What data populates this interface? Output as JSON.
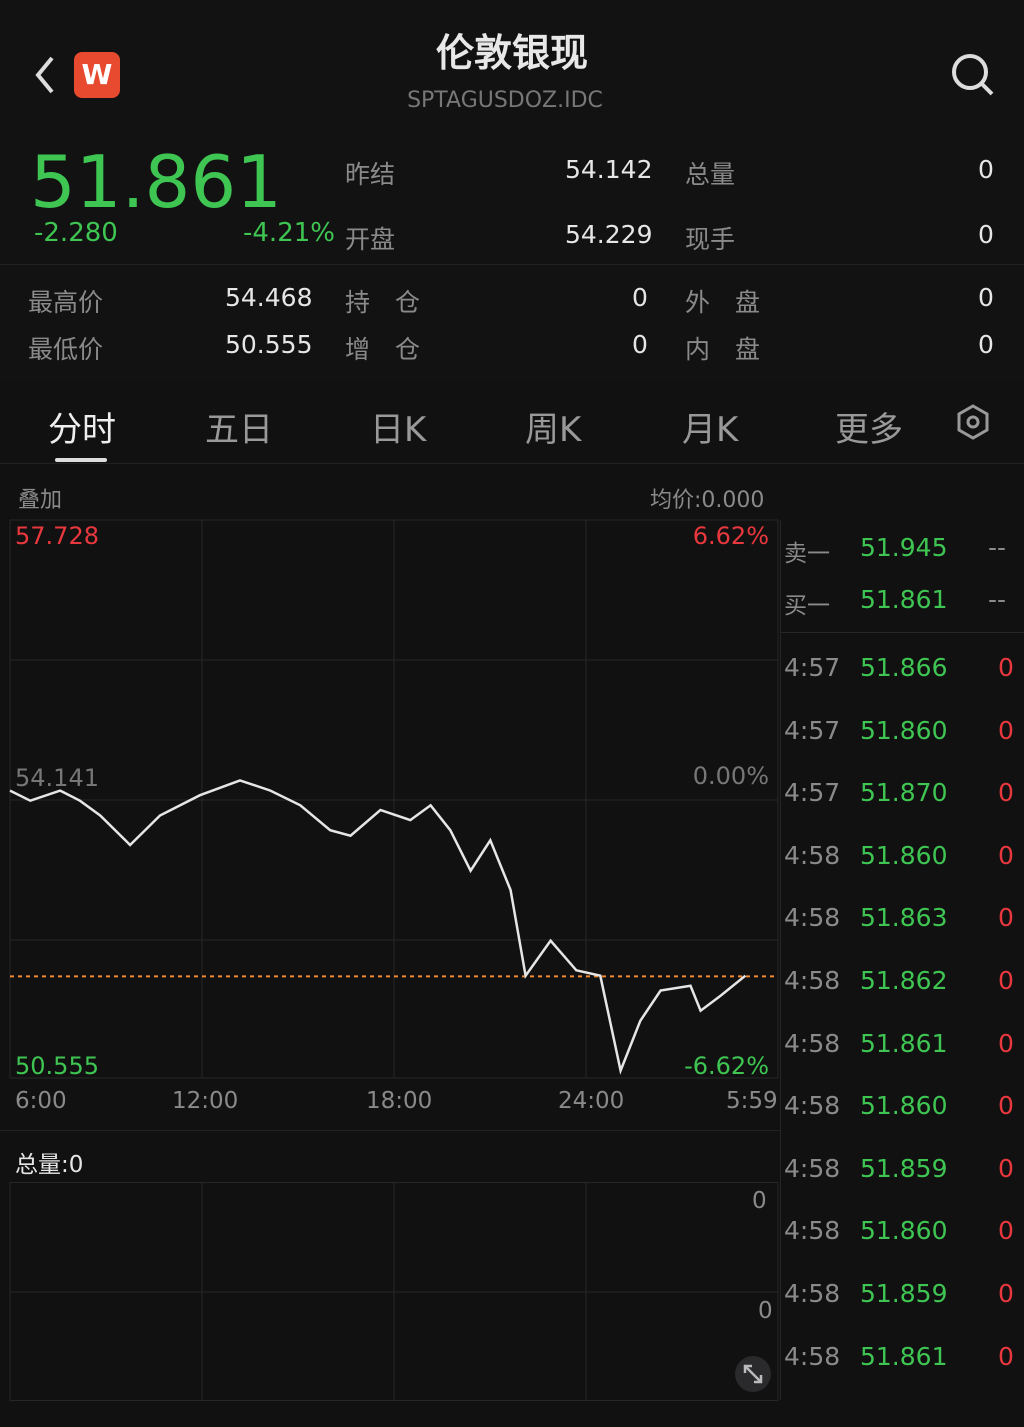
{
  "header": {
    "title": "伦敦银现",
    "code": "SPTAGUSDOZ.IDC",
    "logo": "W",
    "back_icon": "chevron-left-icon",
    "search_icon": "search-icon"
  },
  "quote": {
    "price": "51.861",
    "change": "-2.280",
    "change_pct": "-4.21%",
    "fields": [
      {
        "label": "昨结",
        "value": "54.142"
      },
      {
        "label": "总量",
        "value": "0"
      },
      {
        "label": "开盘",
        "value": "54.229"
      },
      {
        "label": "现手",
        "value": "0"
      },
      {
        "label": "最高价",
        "value": "54.468"
      },
      {
        "label": "持　仓",
        "value": "0"
      },
      {
        "label": "外　盘",
        "value": "0"
      },
      {
        "label": "最低价",
        "value": "50.555"
      },
      {
        "label": "增　仓",
        "value": "0"
      },
      {
        "label": "内　盘",
        "value": "0"
      }
    ]
  },
  "tabs": [
    {
      "label": "分时",
      "active": true
    },
    {
      "label": "五日"
    },
    {
      "label": "日K"
    },
    {
      "label": "周K"
    },
    {
      "label": "月K"
    },
    {
      "label": "更多"
    }
  ],
  "chart_header": {
    "overlay": "叠加",
    "avg": "均价:0.000"
  },
  "chart_data": {
    "type": "line",
    "ylim": [
      50.555,
      57.728
    ],
    "y_labels": {
      "top": "57.728",
      "mid": "54.141",
      "bottom": "50.555"
    },
    "pct_labels": {
      "top": "6.62%",
      "mid": "0.00%",
      "bottom": "-6.62%"
    },
    "x_ticks": [
      "6:00",
      "12:00",
      "18:00",
      "24:00",
      "5:59"
    ],
    "reference_price": 51.861,
    "points": [
      [
        "6:00",
        54.25
      ],
      [
        "6:38",
        54.12
      ],
      [
        "7:34",
        54.25
      ],
      [
        "8:11",
        54.12
      ],
      [
        "8:49",
        53.93
      ],
      [
        "9:45",
        53.55
      ],
      [
        "10:41",
        53.93
      ],
      [
        "11:56",
        54.19
      ],
      [
        "13:11",
        54.38
      ],
      [
        "14:08",
        54.25
      ],
      [
        "15:04",
        54.06
      ],
      [
        "16:00",
        53.74
      ],
      [
        "16:38",
        53.67
      ],
      [
        "17:34",
        54.0
      ],
      [
        "18:30",
        53.87
      ],
      [
        "19:08",
        54.06
      ],
      [
        "19:45",
        53.74
      ],
      [
        "20:23",
        53.22
      ],
      [
        "21:00",
        53.61
      ],
      [
        "21:38",
        52.97
      ],
      [
        "22:06",
        51.87
      ],
      [
        "22:53",
        52.32
      ],
      [
        "23:41",
        51.94
      ],
      [
        "0:26",
        51.87
      ],
      [
        "1:04",
        50.65
      ],
      [
        "1:41",
        51.29
      ],
      [
        "2:19",
        51.68
      ],
      [
        "3:15",
        51.74
      ],
      [
        "3:34",
        51.42
      ],
      [
        "4:11",
        51.61
      ],
      [
        "4:58",
        51.87
      ]
    ],
    "line_color": "#e6e6e6",
    "ref_color": "#f08a2c"
  },
  "volume": {
    "label": "总量:0",
    "top": "0",
    "mid": "0",
    "expand_icon": "expand-icon"
  },
  "orderbook": {
    "ask": {
      "label": "卖一",
      "price": "51.945",
      "vol": "--"
    },
    "bid": {
      "label": "买一",
      "price": "51.861",
      "vol": "--"
    },
    "ticks": [
      [
        "4:57",
        "51.866",
        "0"
      ],
      [
        "4:57",
        "51.860",
        "0"
      ],
      [
        "4:57",
        "51.870",
        "0"
      ],
      [
        "4:58",
        "51.860",
        "0"
      ],
      [
        "4:58",
        "51.863",
        "0"
      ],
      [
        "4:58",
        "51.862",
        "0"
      ],
      [
        "4:58",
        "51.861",
        "0"
      ],
      [
        "4:58",
        "51.860",
        "0"
      ],
      [
        "4:58",
        "51.859",
        "0"
      ],
      [
        "4:58",
        "51.860",
        "0"
      ],
      [
        "4:58",
        "51.859",
        "0"
      ],
      [
        "4:58",
        "51.861",
        "0"
      ]
    ]
  },
  "colors": {
    "up": "#e8383d",
    "down": "#3fc552",
    "bg": "#111112"
  }
}
